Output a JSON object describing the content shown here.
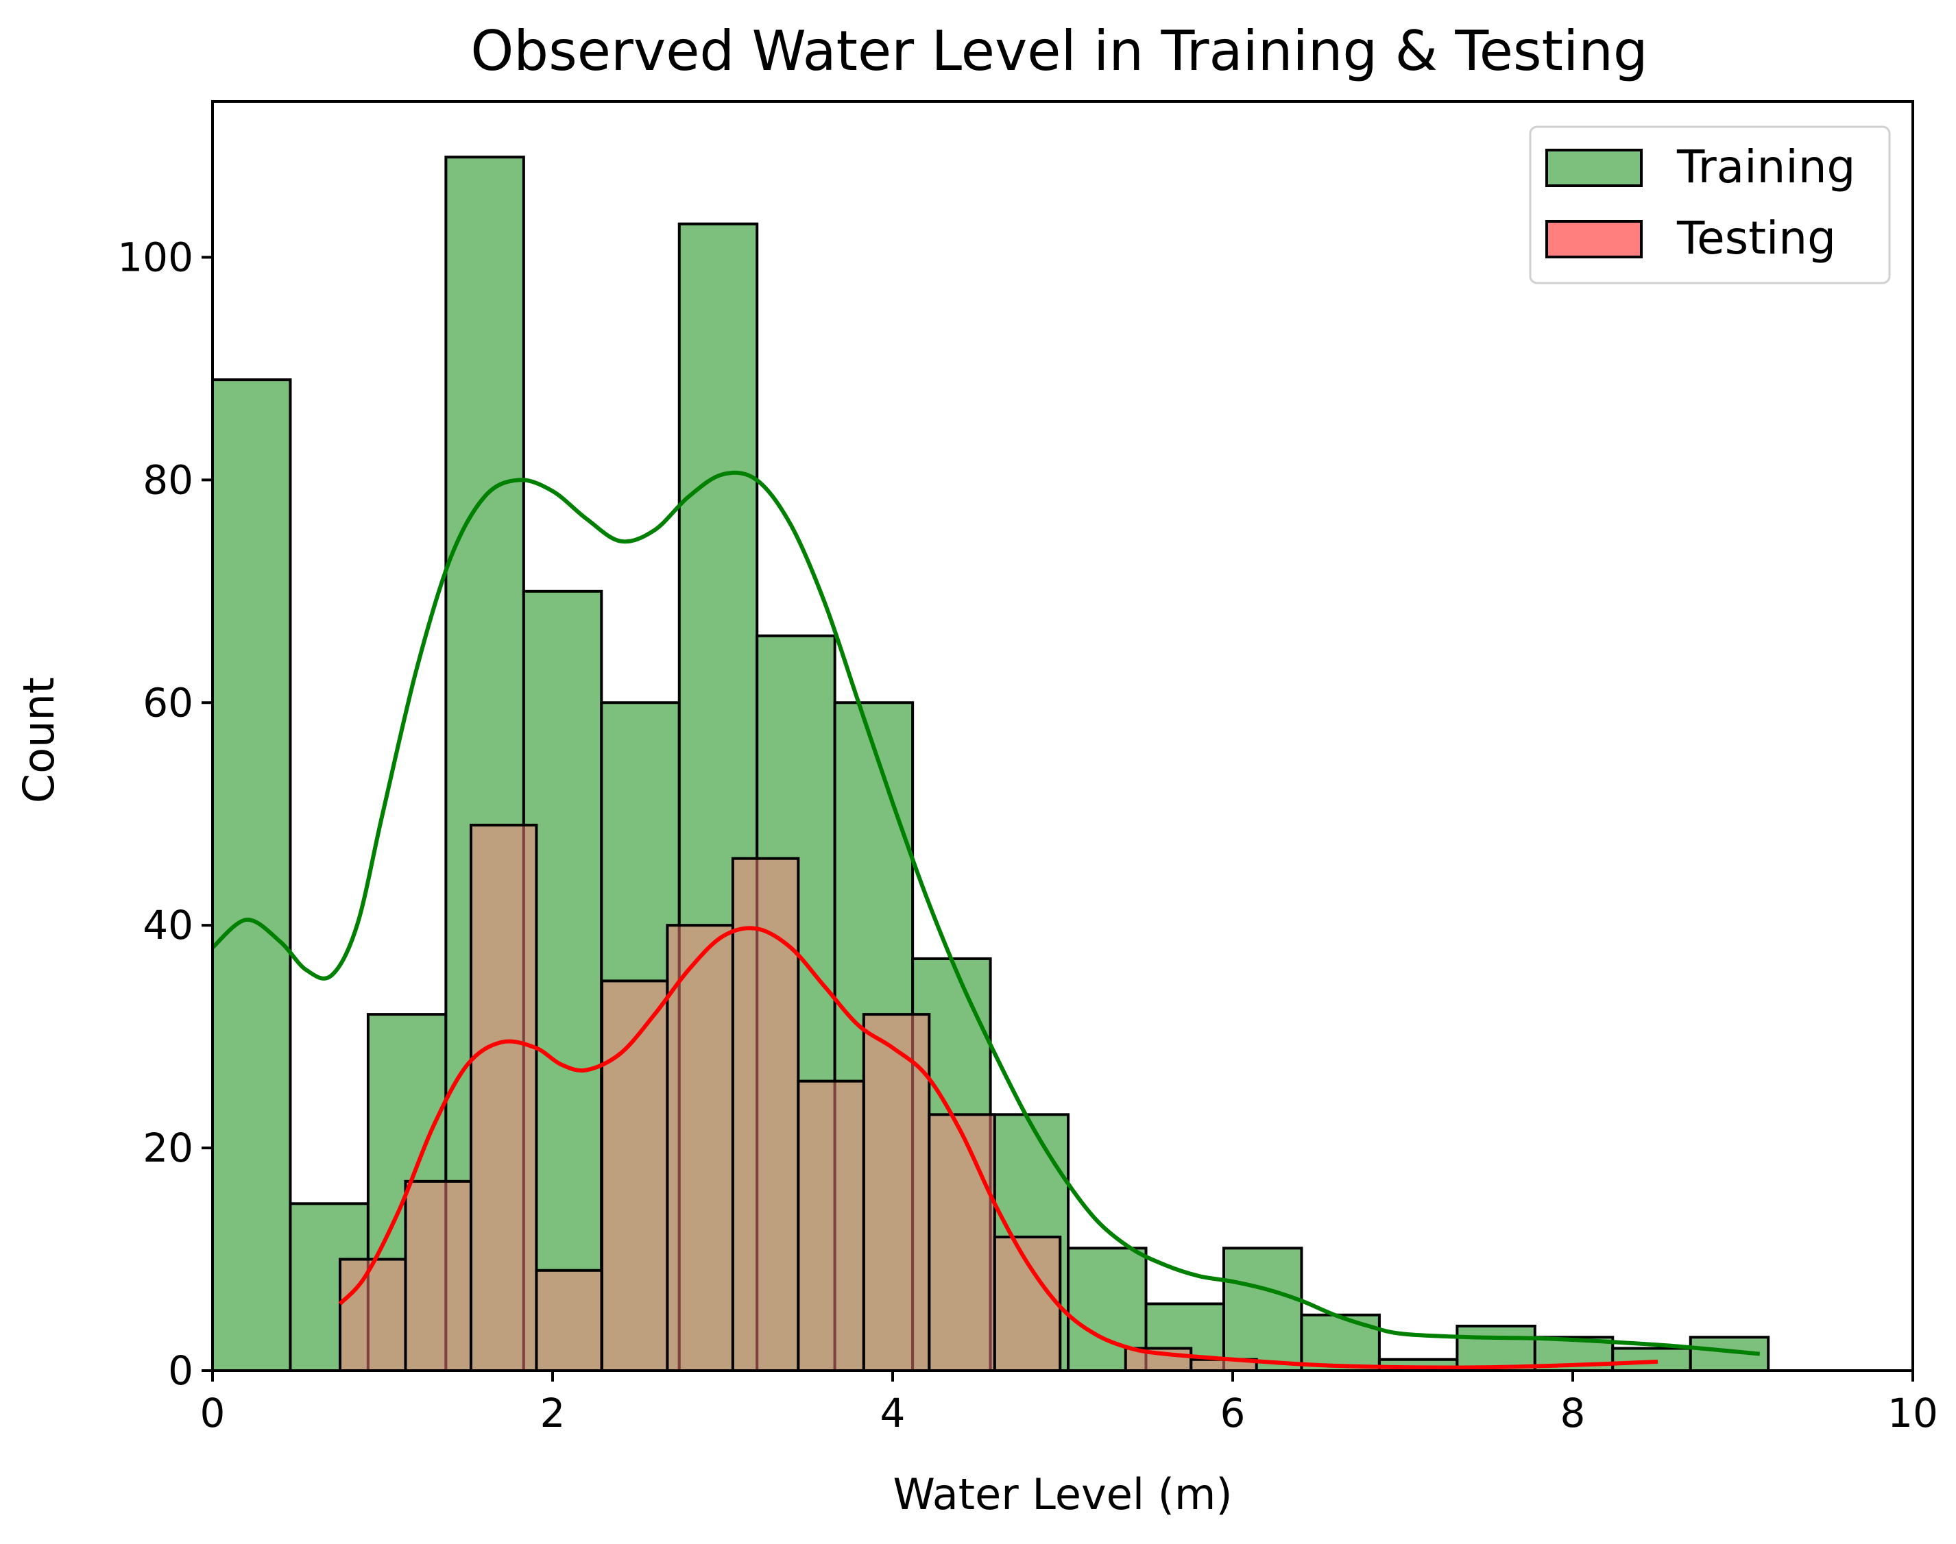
{
  "chart_data": {
    "type": "bar",
    "title": "Observed Water Level in Training & Testing",
    "xlabel": "Water Level (m)",
    "ylabel": "Count",
    "xlim": [
      0,
      10
    ],
    "ylim": [
      0,
      114
    ],
    "xticks": [
      0,
      2,
      4,
      6,
      8,
      10
    ],
    "yticks": [
      0,
      20,
      40,
      60,
      80,
      100
    ],
    "grid": false,
    "legend_position": "top-right",
    "series": [
      {
        "name": "Training",
        "color": "#7dbf7d",
        "line_color": "#008000",
        "bin_start": 0,
        "bin_width": 0.4575,
        "values": [
          89,
          15,
          32,
          109,
          70,
          60,
          103,
          66,
          60,
          37,
          23,
          11,
          6,
          11,
          5,
          1,
          4,
          3,
          2,
          3
        ],
        "kde": [
          [
            0,
            38
          ],
          [
            0.2,
            40.5
          ],
          [
            0.4,
            38.5
          ],
          [
            0.55,
            36
          ],
          [
            0.7,
            35.5
          ],
          [
            0.85,
            40
          ],
          [
            1.0,
            50
          ],
          [
            1.2,
            63
          ],
          [
            1.4,
            73
          ],
          [
            1.6,
            78.5
          ],
          [
            1.8,
            80
          ],
          [
            2.0,
            79
          ],
          [
            2.2,
            76.5
          ],
          [
            2.4,
            74.5
          ],
          [
            2.6,
            75.5
          ],
          [
            2.8,
            78.5
          ],
          [
            3.0,
            80.5
          ],
          [
            3.2,
            80
          ],
          [
            3.4,
            76
          ],
          [
            3.6,
            69
          ],
          [
            3.8,
            60
          ],
          [
            4.0,
            51
          ],
          [
            4.2,
            42.5
          ],
          [
            4.4,
            35
          ],
          [
            4.6,
            28.5
          ],
          [
            4.8,
            22.5
          ],
          [
            5.0,
            17.5
          ],
          [
            5.2,
            13.5
          ],
          [
            5.4,
            11
          ],
          [
            5.6,
            9.5
          ],
          [
            5.8,
            8.5
          ],
          [
            6.0,
            8
          ],
          [
            6.2,
            7.3
          ],
          [
            6.4,
            6.3
          ],
          [
            6.6,
            5
          ],
          [
            6.8,
            4
          ],
          [
            7.0,
            3.3
          ],
          [
            7.4,
            3
          ],
          [
            7.8,
            2.9
          ],
          [
            8.2,
            2.6
          ],
          [
            8.6,
            2.2
          ],
          [
            9.1,
            1.5
          ]
        ]
      },
      {
        "name": "Testing",
        "color": "#ff7f7f",
        "line_color": "#ff0000",
        "bin_start": 0.75,
        "bin_width": 0.385,
        "values": [
          10,
          17,
          49,
          9,
          35,
          40,
          46,
          26,
          32,
          23,
          12,
          0,
          2,
          1,
          0,
          0,
          0,
          0,
          0,
          0
        ],
        "kde": [
          [
            0.75,
            6
          ],
          [
            0.9,
            8.5
          ],
          [
            1.1,
            14.5
          ],
          [
            1.3,
            22
          ],
          [
            1.5,
            27.5
          ],
          [
            1.7,
            29.5
          ],
          [
            1.9,
            29
          ],
          [
            2.05,
            27.5
          ],
          [
            2.2,
            27
          ],
          [
            2.4,
            28.5
          ],
          [
            2.6,
            32
          ],
          [
            2.8,
            36
          ],
          [
            3.0,
            39
          ],
          [
            3.2,
            39.7
          ],
          [
            3.4,
            38
          ],
          [
            3.6,
            34.5
          ],
          [
            3.8,
            31
          ],
          [
            4.0,
            29
          ],
          [
            4.2,
            26.5
          ],
          [
            4.4,
            21.5
          ],
          [
            4.6,
            15
          ],
          [
            4.8,
            9.5
          ],
          [
            5.0,
            5.5
          ],
          [
            5.2,
            3.2
          ],
          [
            5.4,
            2
          ],
          [
            5.6,
            1.5
          ],
          [
            6.0,
            1
          ],
          [
            6.5,
            0.5
          ],
          [
            7.0,
            0.3
          ],
          [
            7.5,
            0.3
          ],
          [
            8.0,
            0.5
          ],
          [
            8.5,
            0.8
          ]
        ]
      }
    ]
  }
}
